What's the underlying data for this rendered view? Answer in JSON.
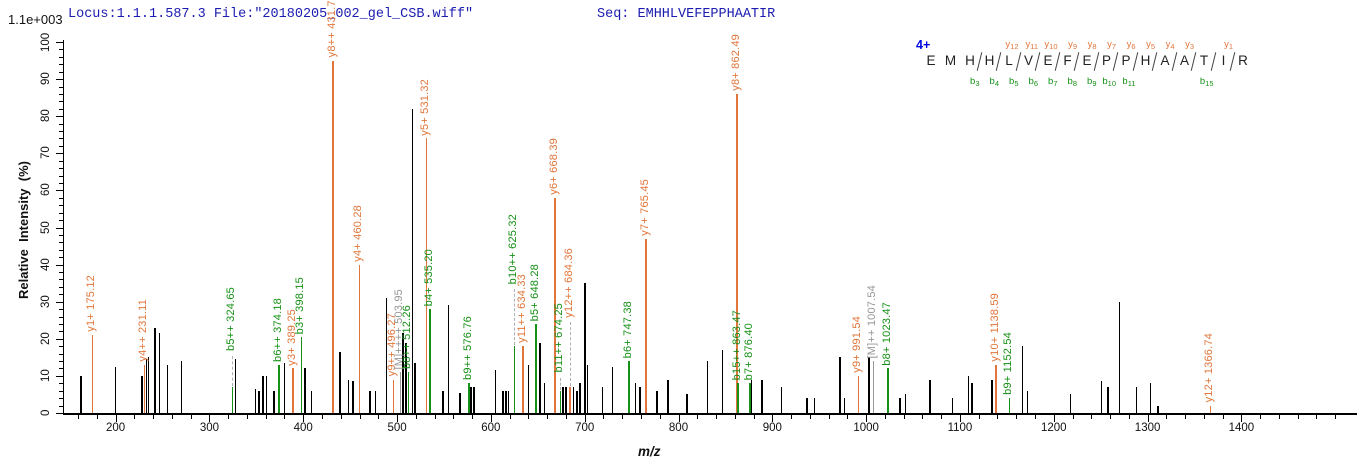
{
  "header": {
    "locus_file": "Locus:1.1.1.587.3 File:\"20180205_002_gel_CSB.wiff\"",
    "seq": "Seq: EMHHLVEFEPPHAATIR",
    "max_label": "1.1e+003"
  },
  "axes": {
    "y_title": "Relative  Intensity  (%)",
    "x_title": "m/z",
    "y_tick_major_step": 10,
    "y_tick_minor_step": 2,
    "x_tick_minor_step": 20
  },
  "colors": {
    "y_ion": "#e0763c",
    "b_ion": "#169016",
    "precursor": "#979797",
    "unlabeled_peak": "#000000",
    "header_text": "#1c1cb0",
    "charge_text": "#0008e0",
    "axis": "#000000"
  },
  "ladder": {
    "charge": "4+",
    "residues": [
      "E",
      "M",
      "H",
      "H",
      "L",
      "V",
      "E",
      "F",
      "E",
      "P",
      "P",
      "H",
      "A",
      "A",
      "T",
      "I",
      "R"
    ],
    "y_markers": {
      "5": "y12",
      "6": "y11",
      "7": "y10",
      "8": "y9",
      "9": "y8",
      "10": "y7",
      "11": "y6",
      "12": "y5",
      "13": "y4",
      "14": "y3",
      "16": "y1"
    },
    "b_markers": {
      "3": "b3",
      "4": "b4",
      "5": "b5",
      "6": "b6",
      "7": "b7",
      "8": "b8",
      "9": "b9",
      "10": "b10",
      "11": "b11",
      "15": "b15"
    },
    "marker_gaps": [
      3,
      4,
      5,
      6,
      7,
      8,
      9,
      10,
      11,
      12,
      13,
      14,
      15,
      16
    ]
  },
  "chart_data": {
    "type": "bar",
    "subtype": "ms2_peptide_fragment_spectrum",
    "xlabel": "m/z",
    "ylabel": "Relative Intensity (%)",
    "xlim": [
      145,
      1520
    ],
    "ylim": [
      0,
      100
    ],
    "x_major_ticks": [
      200,
      300,
      400,
      500,
      600,
      700,
      800,
      900,
      1000,
      1100,
      1200,
      1300,
      1400
    ],
    "y_major_ticks": [
      0,
      10,
      20,
      30,
      40,
      50,
      60,
      70,
      80,
      90,
      100
    ],
    "grid": false,
    "annotated_peaks": [
      {
        "mz": 175.12,
        "intensity_pct": 21,
        "label": "y1+ 175.12",
        "ion_series": "y"
      },
      {
        "mz": 231.11,
        "intensity_pct": 13,
        "label": "y4++ 231.11",
        "ion_series": "y"
      },
      {
        "mz": 324.65,
        "intensity_pct": 7,
        "label": "b5++ 324.65",
        "ion_series": "b",
        "leader": true,
        "label_pct": 16
      },
      {
        "mz": 374.18,
        "intensity_pct": 13,
        "label": "b6++ 374.18",
        "ion_series": "b"
      },
      {
        "mz": 389.25,
        "intensity_pct": 12,
        "label": "y3+ 389.25",
        "ion_series": "y"
      },
      {
        "mz": 398.15,
        "intensity_pct": 20.5,
        "label": "b3+ 398.15",
        "ion_series": "b"
      },
      {
        "mz": 431.75,
        "intensity_pct": 95,
        "label": "y8++ 431.75",
        "ion_series": "y"
      },
      {
        "mz": 460.28,
        "intensity_pct": 40,
        "label": "y4+ 460.28",
        "ion_series": "y"
      },
      {
        "mz": 496.27,
        "intensity_pct": 9,
        "label": "y9++ 496.27",
        "ion_series": "y"
      },
      {
        "mz": 503.95,
        "intensity_pct": 11,
        "label": "[M]++++ 503.95",
        "ion_series": "M"
      },
      {
        "mz": 512.26,
        "intensity_pct": 11,
        "label": "b8++ 512.26",
        "ion_series": "b"
      },
      {
        "mz": 531.32,
        "intensity_pct": 74,
        "label": "y5+ 531.32",
        "ion_series": "y"
      },
      {
        "mz": 535.2,
        "intensity_pct": 28,
        "label": "b4+ 535.20",
        "ion_series": "b"
      },
      {
        "mz": 576.76,
        "intensity_pct": 8,
        "label": "b9++ 576.76",
        "ion_series": "b"
      },
      {
        "mz": 625.32,
        "intensity_pct": 18,
        "label": "b10++ 625.32",
        "ion_series": "b",
        "leader": true,
        "label_pct": 34
      },
      {
        "mz": 634.33,
        "intensity_pct": 18,
        "label": "y11++ 634.33",
        "ion_series": "y"
      },
      {
        "mz": 648.28,
        "intensity_pct": 24,
        "label": "b5+ 648.28",
        "ion_series": "b"
      },
      {
        "mz": 668.39,
        "intensity_pct": 58,
        "label": "y6+ 668.39",
        "ion_series": "y"
      },
      {
        "mz": 674.25,
        "intensity_pct": 6,
        "label": "b11++ 674.25",
        "ion_series": "b",
        "leader": true,
        "label_pct": 10
      },
      {
        "mz": 684.36,
        "intensity_pct": 7,
        "label": "y12++ 684.36",
        "ion_series": "y",
        "leader": true,
        "label_pct": 25
      },
      {
        "mz": 747.38,
        "intensity_pct": 14,
        "label": "b6+ 747.38",
        "ion_series": "b"
      },
      {
        "mz": 765.45,
        "intensity_pct": 47,
        "label": "y7+ 765.45",
        "ion_series": "y"
      },
      {
        "mz": 862.49,
        "intensity_pct": 86,
        "label": "y8+ 862.49",
        "ion_series": "y"
      },
      {
        "mz": 863.47,
        "intensity_pct": 8,
        "label": "b15++ 863.47",
        "ion_series": "b"
      },
      {
        "mz": 876.4,
        "intensity_pct": 8,
        "label": "b7+ 876.40",
        "ion_series": "b"
      },
      {
        "mz": 991.54,
        "intensity_pct": 10,
        "label": "y9+ 991.54",
        "ion_series": "y"
      },
      {
        "mz": 1007.54,
        "intensity_pct": 14,
        "label": "[M]++ 1007.54",
        "ion_series": "M"
      },
      {
        "mz": 1023.47,
        "intensity_pct": 12,
        "label": "b8+ 1023.47",
        "ion_series": "b"
      },
      {
        "mz": 1138.59,
        "intensity_pct": 13,
        "label": "y10+ 1138.59",
        "ion_series": "y"
      },
      {
        "mz": 1152.54,
        "intensity_pct": 4,
        "label": "b9+ 1152.54",
        "ion_series": "b"
      },
      {
        "mz": 1366.74,
        "intensity_pct": 2,
        "label": "y12+ 1366.74",
        "ion_series": "y"
      }
    ],
    "unlabeled_peaks": [
      [
        163,
        10
      ],
      [
        200,
        12.5
      ],
      [
        228,
        10
      ],
      [
        233,
        14.5
      ],
      [
        235,
        15
      ],
      [
        242,
        23
      ],
      [
        247,
        21.5
      ],
      [
        255,
        13
      ],
      [
        270,
        14
      ],
      [
        327.5,
        14.5
      ],
      [
        349,
        6.5
      ],
      [
        353,
        6
      ],
      [
        357,
        10
      ],
      [
        361,
        10
      ],
      [
        369,
        6
      ],
      [
        380,
        13.5
      ],
      [
        402,
        12
      ],
      [
        409,
        6
      ],
      [
        439,
        16.5
      ],
      [
        448,
        9
      ],
      [
        453,
        8.5
      ],
      [
        471,
        6
      ],
      [
        477,
        6
      ],
      [
        489,
        31
      ],
      [
        506.5,
        21.5
      ],
      [
        509.5,
        19
      ],
      [
        516.5,
        82
      ],
      [
        519,
        13.5
      ],
      [
        549,
        6
      ],
      [
        555,
        29
      ],
      [
        567,
        5.5
      ],
      [
        579,
        7
      ],
      [
        582,
        7
      ],
      [
        605,
        11.5
      ],
      [
        613,
        6
      ],
      [
        616,
        6
      ],
      [
        619,
        6
      ],
      [
        640,
        13
      ],
      [
        652.5,
        19
      ],
      [
        657,
        8
      ],
      [
        677,
        7
      ],
      [
        680,
        7
      ],
      [
        688,
        7
      ],
      [
        692,
        6
      ],
      [
        695,
        8
      ],
      [
        700.5,
        35
      ],
      [
        703,
        13
      ],
      [
        719,
        7
      ],
      [
        729.5,
        12.5
      ],
      [
        754,
        8
      ],
      [
        759,
        7
      ],
      [
        777,
        6
      ],
      [
        789,
        9
      ],
      [
        809,
        5
      ],
      [
        831,
        14
      ],
      [
        847,
        17
      ],
      [
        878,
        9
      ],
      [
        889,
        9
      ],
      [
        910,
        7
      ],
      [
        937,
        4
      ],
      [
        945,
        4
      ],
      [
        972,
        15
      ],
      [
        977,
        4
      ],
      [
        1003,
        15
      ],
      [
        1036,
        4
      ],
      [
        1042,
        5
      ],
      [
        1068,
        9
      ],
      [
        1092,
        4
      ],
      [
        1109,
        10
      ],
      [
        1113,
        8
      ],
      [
        1134,
        9
      ],
      [
        1166.5,
        18
      ],
      [
        1172,
        6
      ],
      [
        1218,
        5
      ],
      [
        1251,
        8.5
      ],
      [
        1258,
        7
      ],
      [
        1270,
        30
      ],
      [
        1288,
        7
      ],
      [
        1303,
        8
      ],
      [
        1311,
        2
      ]
    ]
  }
}
